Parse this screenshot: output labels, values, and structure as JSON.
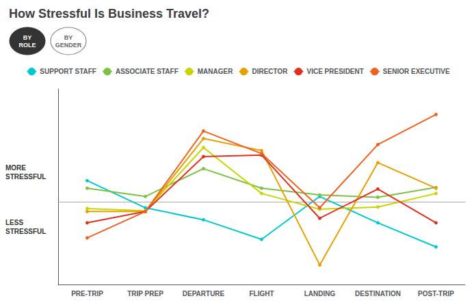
{
  "chart_data": {
    "type": "line",
    "title": "How Stressful Is Business Travel?",
    "categories": [
      "PRE-TRIP",
      "TRIP PREP",
      "DEPARTURE",
      "FLIGHT",
      "LANDING",
      "DESTINATION",
      "POST-TRIP"
    ],
    "series": [
      {
        "name": "SUPPORT STAFF",
        "color": "#00c8d2",
        "values": [
          1.4,
          -0.4,
          -1.2,
          -2.5,
          0.35,
          -1.4,
          -3.0
        ]
      },
      {
        "name": "ASSOCIATE STAFF",
        "color": "#7dc242",
        "values": [
          0.9,
          0.35,
          2.2,
          0.9,
          0.45,
          0.3,
          0.95
        ]
      },
      {
        "name": "MANAGER",
        "color": "#c8d400",
        "values": [
          -0.45,
          -0.6,
          3.6,
          0.55,
          -0.5,
          -0.35,
          0.55
        ]
      },
      {
        "name": "DIRECTOR",
        "color": "#e8a000",
        "values": [
          -0.65,
          -0.65,
          4.2,
          3.4,
          -4.2,
          2.6,
          0.9
        ]
      },
      {
        "name": "VICE PRESIDENT",
        "color": "#e03020",
        "values": [
          -1.4,
          -0.65,
          3.0,
          3.1,
          -1.1,
          0.85,
          -1.4
        ]
      },
      {
        "name": "SENIOR EXECUTIVE",
        "color": "#f06020",
        "values": [
          -2.4,
          -0.65,
          4.7,
          3.2,
          -0.4,
          3.8,
          5.8
        ]
      }
    ],
    "ylim": [
      -5.5,
      7.5
    ],
    "tick_labels": "x",
    "grid": false,
    "legend": "top",
    "marker": "circle",
    "annotations": [
      "MORE\nSTRESSFUL",
      "LESS\nSTRESSFUL",
      "BY\nROLE",
      "BY\nGENDER"
    ]
  }
}
